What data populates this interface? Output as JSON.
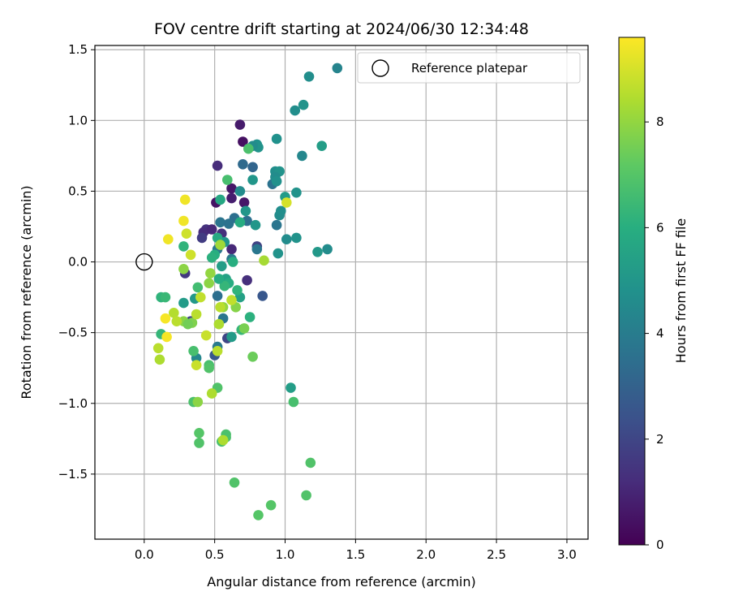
{
  "chart_data": {
    "type": "scatter",
    "title": "FOV centre drift starting at 2024/06/30 12:34:48",
    "xlabel": "Angular distance from reference (arcmin)",
    "ylabel": "Rotation from reference (arcmin)",
    "xlim": [
      -0.35,
      3.15
    ],
    "ylim": [
      -1.96,
      1.53
    ],
    "xticks": [
      0.0,
      0.5,
      1.0,
      1.5,
      2.0,
      2.5,
      3.0
    ],
    "xtick_labels": [
      "0.0",
      "0.5",
      "1.0",
      "1.5",
      "2.0",
      "2.5",
      "3.0"
    ],
    "yticks": [
      1.5,
      1.0,
      0.5,
      0.0,
      -0.5,
      -1.0,
      -1.5
    ],
    "ytick_labels": [
      "1.5",
      "1.0",
      "0.5",
      "0.0",
      "−0.5",
      "−1.0",
      "−1.5"
    ],
    "grid": true,
    "legend": {
      "position": "top-right",
      "entries": [
        "Reference platepar"
      ]
    },
    "reference_point": {
      "x": 0.0,
      "y": 0.0,
      "label": "Reference platepar"
    },
    "colorbar": {
      "label": "Hours from first FF file",
      "colormap": "viridis",
      "range": [
        0,
        9.6
      ],
      "ticks": [
        0,
        2,
        4,
        6,
        8
      ],
      "tick_labels": [
        "0",
        "2",
        "4",
        "6",
        "8"
      ]
    },
    "series": [
      {
        "points": [
          {
            "x": 0.68,
            "y": 0.97,
            "h": 0.7
          },
          {
            "x": 0.7,
            "y": 0.85,
            "h": 0.4
          },
          {
            "x": 0.52,
            "y": 0.68,
            "h": 1.2
          },
          {
            "x": 0.62,
            "y": 0.52,
            "h": 0.6
          },
          {
            "x": 0.51,
            "y": 0.42,
            "h": 0.5
          },
          {
            "x": 0.62,
            "y": 0.45,
            "h": 0.8
          },
          {
            "x": 0.71,
            "y": 0.42,
            "h": 0.6
          },
          {
            "x": 0.44,
            "y": 0.23,
            "h": 1.4
          },
          {
            "x": 0.42,
            "y": 0.21,
            "h": 1.2
          },
          {
            "x": 0.48,
            "y": 0.23,
            "h": 1.1
          },
          {
            "x": 0.55,
            "y": 0.2,
            "h": 1.3
          },
          {
            "x": 0.41,
            "y": 0.17,
            "h": 1.7
          },
          {
            "x": 0.62,
            "y": 0.09,
            "h": 1.1
          },
          {
            "x": 0.29,
            "y": -0.08,
            "h": 1.6
          },
          {
            "x": 0.73,
            "y": -0.13,
            "h": 1.3
          },
          {
            "x": 0.84,
            "y": -0.24,
            "h": 2.6
          },
          {
            "x": 0.5,
            "y": -0.66,
            "h": 2.6
          },
          {
            "x": 0.59,
            "y": -0.54,
            "h": 2.0
          },
          {
            "x": 0.8,
            "y": 0.11,
            "h": 1.9
          },
          {
            "x": 0.33,
            "y": -0.42,
            "h": 1.9
          },
          {
            "x": 0.7,
            "y": 0.69,
            "h": 3.3
          },
          {
            "x": 0.77,
            "y": 0.67,
            "h": 3.1
          },
          {
            "x": 0.91,
            "y": 0.55,
            "h": 3.6
          },
          {
            "x": 0.64,
            "y": 0.31,
            "h": 3.5
          },
          {
            "x": 0.73,
            "y": 0.29,
            "h": 3.5
          },
          {
            "x": 0.94,
            "y": 0.26,
            "h": 3.7
          },
          {
            "x": 0.54,
            "y": 0.28,
            "h": 3.7
          },
          {
            "x": 0.6,
            "y": 0.27,
            "h": 3.6
          },
          {
            "x": 0.52,
            "y": 0.09,
            "h": 3.8
          },
          {
            "x": 0.8,
            "y": 0.09,
            "h": 3.8
          },
          {
            "x": 0.62,
            "y": 0.02,
            "h": 3.9
          },
          {
            "x": 0.52,
            "y": -0.24,
            "h": 3.5
          },
          {
            "x": 0.56,
            "y": -0.4,
            "h": 3.7
          },
          {
            "x": 0.52,
            "y": -0.6,
            "h": 3.9
          },
          {
            "x": 0.37,
            "y": -0.68,
            "h": 4.4
          },
          {
            "x": 1.37,
            "y": 1.37,
            "h": 4.3
          },
          {
            "x": 1.17,
            "y": 1.31,
            "h": 4.7
          },
          {
            "x": 1.13,
            "y": 1.11,
            "h": 4.9
          },
          {
            "x": 1.07,
            "y": 1.07,
            "h": 4.7
          },
          {
            "x": 1.12,
            "y": 0.75,
            "h": 4.4
          },
          {
            "x": 0.8,
            "y": 0.83,
            "h": 4.8
          },
          {
            "x": 0.81,
            "y": 0.81,
            "h": 4.9
          },
          {
            "x": 0.94,
            "y": 0.87,
            "h": 4.8
          },
          {
            "x": 0.77,
            "y": 0.82,
            "h": 4.6
          },
          {
            "x": 0.93,
            "y": 0.64,
            "h": 4.7
          },
          {
            "x": 0.96,
            "y": 0.64,
            "h": 4.9
          },
          {
            "x": 0.93,
            "y": 0.6,
            "h": 4.6
          },
          {
            "x": 0.94,
            "y": 0.57,
            "h": 4.8
          },
          {
            "x": 0.77,
            "y": 0.58,
            "h": 5.0
          },
          {
            "x": 1.0,
            "y": 0.46,
            "h": 5.2
          },
          {
            "x": 1.08,
            "y": 0.49,
            "h": 4.9
          },
          {
            "x": 0.96,
            "y": 0.33,
            "h": 4.6
          },
          {
            "x": 0.97,
            "y": 0.36,
            "h": 4.7
          },
          {
            "x": 0.68,
            "y": 0.5,
            "h": 4.6
          },
          {
            "x": 0.72,
            "y": 0.36,
            "h": 5.0
          },
          {
            "x": 1.01,
            "y": 0.16,
            "h": 4.6
          },
          {
            "x": 1.08,
            "y": 0.17,
            "h": 4.9
          },
          {
            "x": 1.23,
            "y": 0.07,
            "h": 5.1
          },
          {
            "x": 1.3,
            "y": 0.09,
            "h": 4.6
          },
          {
            "x": 0.95,
            "y": 0.06,
            "h": 4.9
          },
          {
            "x": 1.26,
            "y": 0.82,
            "h": 5.3
          },
          {
            "x": 0.79,
            "y": 0.26,
            "h": 5.0
          },
          {
            "x": 0.57,
            "y": 0.14,
            "h": 5.0
          },
          {
            "x": 0.55,
            "y": -0.03,
            "h": 5.3
          },
          {
            "x": 0.58,
            "y": -0.12,
            "h": 5.5
          },
          {
            "x": 0.68,
            "y": -0.25,
            "h": 5.4
          },
          {
            "x": 0.62,
            "y": -0.53,
            "h": 5.2
          },
          {
            "x": 1.04,
            "y": -0.89,
            "h": 5.3
          },
          {
            "x": 0.36,
            "y": -0.26,
            "h": 5.1
          },
          {
            "x": 0.28,
            "y": -0.29,
            "h": 5.2
          },
          {
            "x": 0.54,
            "y": 0.44,
            "h": 5.7
          },
          {
            "x": 0.68,
            "y": 0.28,
            "h": 5.9
          },
          {
            "x": 0.52,
            "y": 0.17,
            "h": 5.8
          },
          {
            "x": 0.5,
            "y": 0.05,
            "h": 6.0
          },
          {
            "x": 0.48,
            "y": 0.03,
            "h": 6.1
          },
          {
            "x": 0.63,
            "y": 0.0,
            "h": 6.0
          },
          {
            "x": 0.6,
            "y": -0.15,
            "h": 5.9
          },
          {
            "x": 0.57,
            "y": -0.17,
            "h": 6.3
          },
          {
            "x": 0.53,
            "y": -0.12,
            "h": 5.9
          },
          {
            "x": 0.66,
            "y": -0.2,
            "h": 6.2
          },
          {
            "x": 0.75,
            "y": -0.39,
            "h": 6.1
          },
          {
            "x": 0.69,
            "y": -0.48,
            "h": 6.3
          },
          {
            "x": 0.28,
            "y": 0.11,
            "h": 6.2
          },
          {
            "x": 0.12,
            "y": -0.25,
            "h": 6.2
          },
          {
            "x": 0.15,
            "y": -0.25,
            "h": 6.4
          },
          {
            "x": 0.12,
            "y": -0.51,
            "h": 6.3
          },
          {
            "x": 0.38,
            "y": -0.18,
            "h": 6.6
          },
          {
            "x": 0.59,
            "y": 0.58,
            "h": 6.7
          },
          {
            "x": 0.74,
            "y": 0.8,
            "h": 6.8
          },
          {
            "x": 0.35,
            "y": -0.63,
            "h": 6.7
          },
          {
            "x": 0.46,
            "y": -0.73,
            "h": 6.7
          },
          {
            "x": 0.46,
            "y": -0.75,
            "h": 6.9
          },
          {
            "x": 0.52,
            "y": -0.89,
            "h": 6.9
          },
          {
            "x": 0.35,
            "y": -0.99,
            "h": 6.8
          },
          {
            "x": 1.06,
            "y": -0.99,
            "h": 6.7
          },
          {
            "x": 0.39,
            "y": -1.21,
            "h": 7.0
          },
          {
            "x": 0.39,
            "y": -1.28,
            "h": 6.9
          },
          {
            "x": 0.58,
            "y": -1.22,
            "h": 6.8
          },
          {
            "x": 0.58,
            "y": -1.24,
            "h": 6.8
          },
          {
            "x": 0.55,
            "y": -1.27,
            "h": 6.7
          },
          {
            "x": 1.18,
            "y": -1.42,
            "h": 6.9
          },
          {
            "x": 1.15,
            "y": -1.65,
            "h": 6.9
          },
          {
            "x": 0.64,
            "y": -1.56,
            "h": 6.9
          },
          {
            "x": 0.9,
            "y": -1.72,
            "h": 7.0
          },
          {
            "x": 0.81,
            "y": -1.79,
            "h": 7.0
          },
          {
            "x": 0.77,
            "y": -0.67,
            "h": 7.4
          },
          {
            "x": 0.71,
            "y": -0.47,
            "h": 7.6
          },
          {
            "x": 0.65,
            "y": -0.32,
            "h": 7.8
          },
          {
            "x": 0.28,
            "y": -0.42,
            "h": 7.9
          },
          {
            "x": 0.34,
            "y": -0.43,
            "h": 7.7
          },
          {
            "x": 0.31,
            "y": -0.44,
            "h": 7.5
          },
          {
            "x": 0.46,
            "y": -0.15,
            "h": 7.9
          },
          {
            "x": 0.56,
            "y": -0.32,
            "h": 8.0
          },
          {
            "x": 0.47,
            "y": -0.08,
            "h": 8.0
          },
          {
            "x": 0.28,
            "y": -0.05,
            "h": 7.9
          },
          {
            "x": 0.38,
            "y": -0.99,
            "h": 7.9
          },
          {
            "x": 0.54,
            "y": 0.12,
            "h": 8.2
          },
          {
            "x": 0.85,
            "y": 0.01,
            "h": 8.3
          },
          {
            "x": 0.53,
            "y": -0.44,
            "h": 8.4
          },
          {
            "x": 0.54,
            "y": -0.32,
            "h": 8.6
          },
          {
            "x": 0.21,
            "y": -0.36,
            "h": 8.5
          },
          {
            "x": 0.23,
            "y": -0.42,
            "h": 8.6
          },
          {
            "x": 0.1,
            "y": -0.61,
            "h": 8.6
          },
          {
            "x": 0.11,
            "y": -0.69,
            "h": 8.4
          },
          {
            "x": 0.37,
            "y": -0.37,
            "h": 8.6
          },
          {
            "x": 0.44,
            "y": -0.52,
            "h": 8.8
          },
          {
            "x": 0.52,
            "y": -0.63,
            "h": 8.6
          },
          {
            "x": 0.48,
            "y": -0.93,
            "h": 8.4
          },
          {
            "x": 0.37,
            "y": -0.73,
            "h": 8.8
          },
          {
            "x": 0.62,
            "y": -0.27,
            "h": 8.7
          },
          {
            "x": 0.4,
            "y": -0.25,
            "h": 8.7
          },
          {
            "x": 0.3,
            "y": 0.2,
            "h": 8.9
          },
          {
            "x": 0.33,
            "y": 0.05,
            "h": 8.9
          },
          {
            "x": 0.56,
            "y": -1.26,
            "h": 8.4
          },
          {
            "x": 1.01,
            "y": 0.42,
            "h": 9.0
          },
          {
            "x": 0.29,
            "y": 0.44,
            "h": 9.4
          },
          {
            "x": 0.28,
            "y": 0.29,
            "h": 9.4
          },
          {
            "x": 0.17,
            "y": 0.16,
            "h": 9.4
          },
          {
            "x": 0.15,
            "y": -0.4,
            "h": 9.5
          },
          {
            "x": 0.16,
            "y": -0.53,
            "h": 9.5
          }
        ]
      }
    ]
  }
}
